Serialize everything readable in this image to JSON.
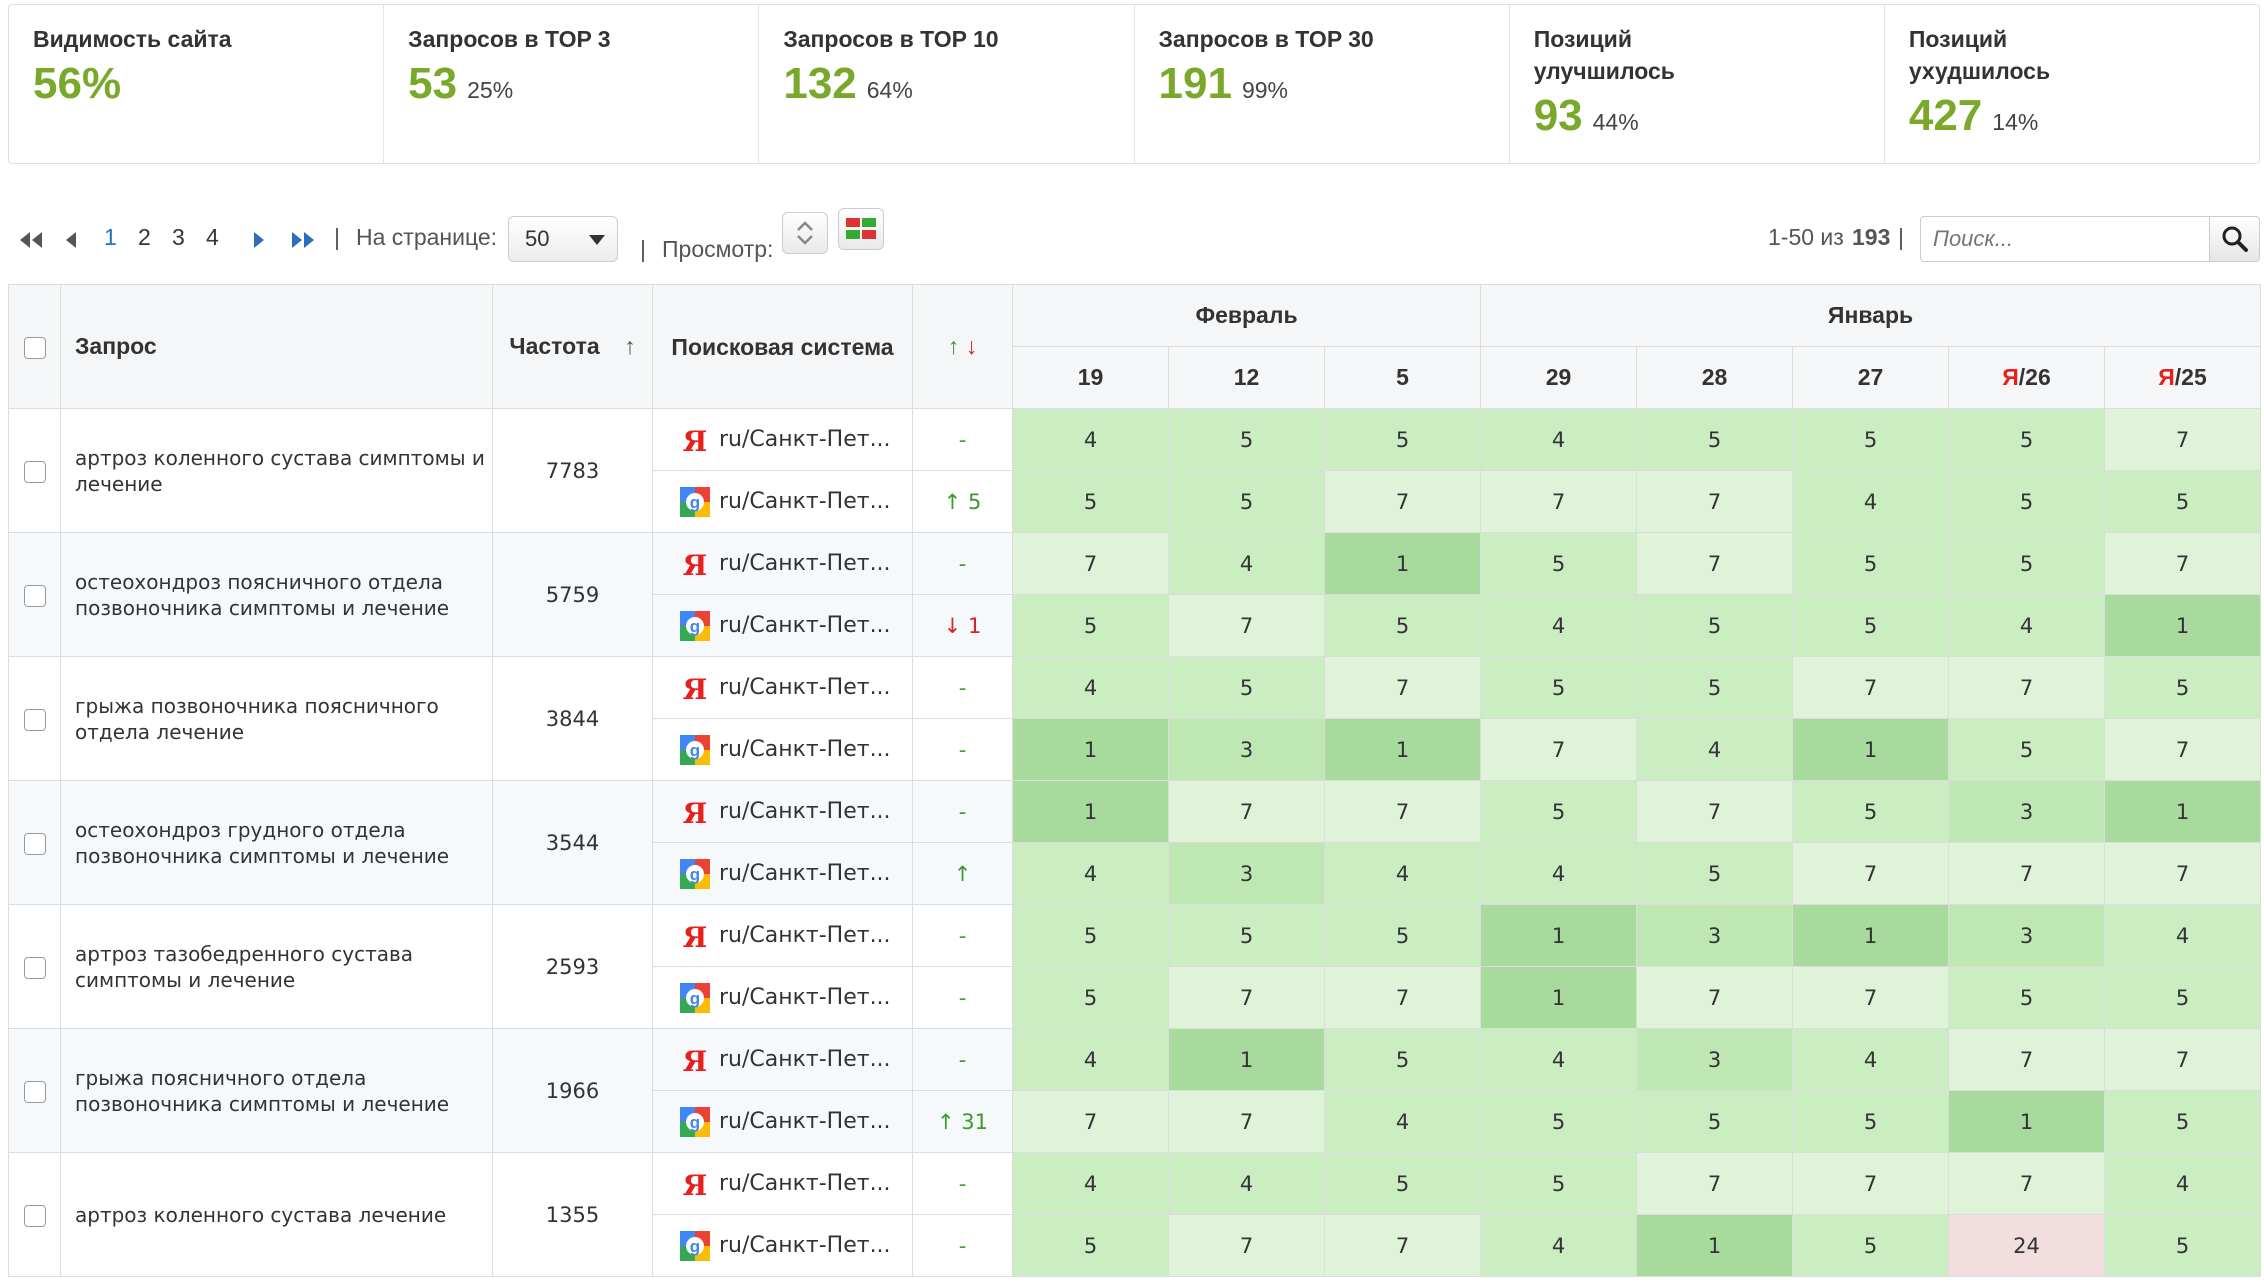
{
  "colors": {
    "accent_green": "#7aa82a",
    "link_blue": "#1f72c7",
    "pos_top1": "#a8d99d",
    "pos_top3": "#bfe7b4",
    "pos_top5": "#cbedc2",
    "pos_top10": "#dff3d9",
    "pos_bad": "#f2dede"
  },
  "stats": [
    {
      "label": "Видимость сайта",
      "value": "56%",
      "pct": ""
    },
    {
      "label": "Запросов в TOP 3",
      "value": "53",
      "pct": "25%"
    },
    {
      "label": "Запросов в TOP 10",
      "value": "132",
      "pct": "64%"
    },
    {
      "label": "Запросов в TOP 30",
      "value": "191",
      "pct": "99%"
    },
    {
      "label": "Позиций улучшилось",
      "value": "93",
      "pct": "44%"
    },
    {
      "label": "Позиций ухудшилось",
      "value": "427",
      "pct": "14%"
    }
  ],
  "toolbar": {
    "pages": [
      "1",
      "2",
      "3",
      "4"
    ],
    "active_page": "1",
    "per_page_label": "На странице:",
    "per_page_value": "50",
    "view_label": "Просмотр:",
    "range_text": "1-50 из",
    "total": "193",
    "search_placeholder": "Поиск..."
  },
  "table": {
    "headers": {
      "query": "Запрос",
      "frequency": "Частота",
      "frequency_sort": "↑",
      "engine": "Поисковая система",
      "change_up": "↑",
      "change_down": "↓"
    },
    "months": [
      {
        "name": "Февраль",
        "span": 3
      },
      {
        "name": "Январь",
        "span": 5
      }
    ],
    "days": [
      {
        "prefix": "",
        "label": "19"
      },
      {
        "prefix": "",
        "label": "12"
      },
      {
        "prefix": "",
        "label": "5"
      },
      {
        "prefix": "",
        "label": "29"
      },
      {
        "prefix": "",
        "label": "28"
      },
      {
        "prefix": "",
        "label": "27"
      },
      {
        "prefix": "Я",
        "label": "/26"
      },
      {
        "prefix": "Я",
        "label": "/25"
      }
    ],
    "rows": [
      {
        "query": "артроз коленного сустава симптомы и лечение",
        "frequency": "7783",
        "engines": [
          {
            "engine": "yandex",
            "region": "ru/Санкт-Пет...",
            "change": "-",
            "change_dir": "none",
            "positions": [
              "4",
              "5",
              "5",
              "4",
              "5",
              "5",
              "5",
              "7"
            ]
          },
          {
            "engine": "google",
            "region": "ru/Санкт-Пет...",
            "change": "↑ 5",
            "change_dir": "up",
            "positions": [
              "5",
              "5",
              "7",
              "7",
              "7",
              "4",
              "5",
              "5"
            ]
          }
        ]
      },
      {
        "query": "остеохондроз поясничного отдела позвоночника симптомы и лечение",
        "frequency": "5759",
        "engines": [
          {
            "engine": "yandex",
            "region": "ru/Санкт-Пет...",
            "change": "-",
            "change_dir": "none",
            "positions": [
              "7",
              "4",
              "1",
              "5",
              "7",
              "5",
              "5",
              "7"
            ]
          },
          {
            "engine": "google",
            "region": "ru/Санкт-Пет...",
            "change": "↓ 1",
            "change_dir": "down",
            "positions": [
              "5",
              "7",
              "5",
              "4",
              "5",
              "5",
              "4",
              "1"
            ]
          }
        ]
      },
      {
        "query": "грыжа позвоночника поясничного отдела лечение",
        "frequency": "3844",
        "engines": [
          {
            "engine": "yandex",
            "region": "ru/Санкт-Пет...",
            "change": "-",
            "change_dir": "none",
            "positions": [
              "4",
              "5",
              "7",
              "5",
              "5",
              "7",
              "7",
              "5"
            ]
          },
          {
            "engine": "google",
            "region": "ru/Санкт-Пет...",
            "change": "-",
            "change_dir": "none",
            "positions": [
              "1",
              "3",
              "1",
              "7",
              "4",
              "1",
              "5",
              "7"
            ]
          }
        ]
      },
      {
        "query": "остеохондроз грудного отдела позвоночника симптомы и лечение",
        "frequency": "3544",
        "engines": [
          {
            "engine": "yandex",
            "region": "ru/Санкт-Пет...",
            "change": "-",
            "change_dir": "none",
            "positions": [
              "1",
              "7",
              "7",
              "5",
              "7",
              "5",
              "3",
              "1"
            ]
          },
          {
            "engine": "google",
            "region": "ru/Санкт-Пет...",
            "change": "↑",
            "change_dir": "up",
            "positions": [
              "4",
              "3",
              "4",
              "4",
              "5",
              "7",
              "7",
              "7"
            ]
          }
        ]
      },
      {
        "query": "артроз тазобедренного сустава симптомы и лечение",
        "frequency": "2593",
        "engines": [
          {
            "engine": "yandex",
            "region": "ru/Санкт-Пет...",
            "change": "-",
            "change_dir": "none",
            "positions": [
              "5",
              "5",
              "5",
              "1",
              "3",
              "1",
              "3",
              "4"
            ]
          },
          {
            "engine": "google",
            "region": "ru/Санкт-Пет...",
            "change": "-",
            "change_dir": "none",
            "positions": [
              "5",
              "7",
              "7",
              "1",
              "7",
              "7",
              "5",
              "5"
            ]
          }
        ]
      },
      {
        "query": "грыжа поясничного отдела позвоночника симптомы и лечение",
        "frequency": "1966",
        "engines": [
          {
            "engine": "yandex",
            "region": "ru/Санкт-Пет...",
            "change": "-",
            "change_dir": "none",
            "positions": [
              "4",
              "1",
              "5",
              "4",
              "3",
              "4",
              "7",
              "7"
            ]
          },
          {
            "engine": "google",
            "region": "ru/Санкт-Пет...",
            "change": "↑ 31",
            "change_dir": "up",
            "positions": [
              "7",
              "7",
              "4",
              "5",
              "5",
              "5",
              "1",
              "5"
            ]
          }
        ]
      },
      {
        "query": "артроз коленного сустава лечение",
        "frequency": "1355",
        "engines": [
          {
            "engine": "yandex",
            "region": "ru/Санкт-Пет...",
            "change": "-",
            "change_dir": "none",
            "positions": [
              "4",
              "4",
              "5",
              "5",
              "7",
              "7",
              "7",
              "4"
            ]
          },
          {
            "engine": "google",
            "region": "ru/Санкт-Пет...",
            "change": "-",
            "change_dir": "none",
            "positions": [
              "5",
              "7",
              "7",
              "4",
              "1",
              "5",
              "24",
              "5"
            ]
          }
        ]
      }
    ]
  }
}
